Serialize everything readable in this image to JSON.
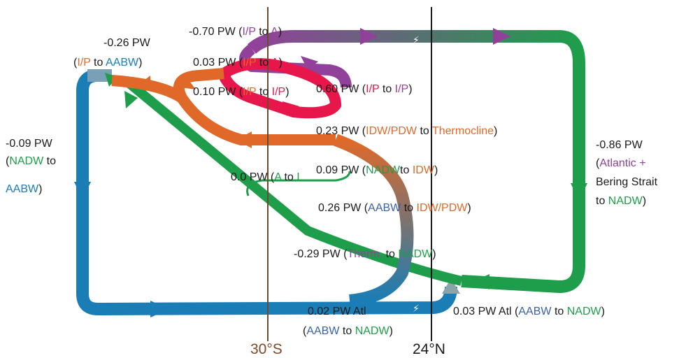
{
  "colors": {
    "blue": "#1a7db5",
    "green": "#1e9e4a",
    "orange": "#e0692a",
    "purple": "#92419a",
    "red": "#e8174b",
    "text": "#1a1a1a",
    "lat30": "#7a4a2a",
    "lat24": "#1a1a1a"
  },
  "latitudes": {
    "s30": "30°S",
    "n24": "24°N"
  },
  "labels": {
    "l026": {
      "value": "-0.26 PW",
      "from": "I/P",
      "mid": " to ",
      "to": "AABW"
    },
    "l070": {
      "value": "-0.70 PW (",
      "from": "I/P",
      "mid": " to ",
      "to": "A",
      "close": ")"
    },
    "l003a": {
      "value": "0.03 PW (",
      "from": "I/P",
      "mid": " to ",
      "to": "A",
      "close": ")"
    },
    "l010": {
      "value": "0.10 PW (",
      "from": "I/P",
      "mid": " to ",
      "to": "I/P",
      "close": ")"
    },
    "l060": {
      "value": "0.60 PW (",
      "from": "I/P",
      "mid": " to ",
      "to": "I/P",
      "close": ")"
    },
    "l023": {
      "value": "0.23 PW (",
      "from": "IDW/PDW",
      "mid": " to ",
      "to": "Thermocline",
      "close": ")"
    },
    "l009w": {
      "line1": "-0.09 PW",
      "line2a": "(",
      "line2b": "NADW",
      "line2c": " to",
      "line3": "AABW",
      "line3b": ")"
    },
    "l000": {
      "value": "0.0 PW (",
      "from": "A",
      "mid": " to ",
      "to": "I"
    },
    "l009": {
      "value": "0.09 PW (",
      "from": "NADW",
      "mid": "to ",
      "to": "IDW",
      "close": ")"
    },
    "l026b": {
      "value": "0.26 PW (",
      "from": "AABW",
      "mid": " to ",
      "to": "IDW/PDW",
      "close": ")"
    },
    "l029": {
      "value": "-0.29 PW (",
      "from": "Therm.",
      "mid": " to ",
      "to": "NADW",
      "close": ")"
    },
    "l002": {
      "line1": "0.02 PW Atl",
      "line2a": "(",
      "from": "AABW",
      "mid": " to ",
      "to": "NADW",
      "close": ")"
    },
    "l003b": {
      "value": "0.03 PW Atl (",
      "from": "AABW",
      "mid": " to ",
      "to": "NADW",
      "close": ")"
    },
    "l086": {
      "line1": "-0.86 PW",
      "line2a": "(",
      "line2b": "Atlantic +",
      "line3": "Bering Strait",
      "line4a": "to ",
      "line4b": "NADW",
      "line4c": ")"
    }
  }
}
